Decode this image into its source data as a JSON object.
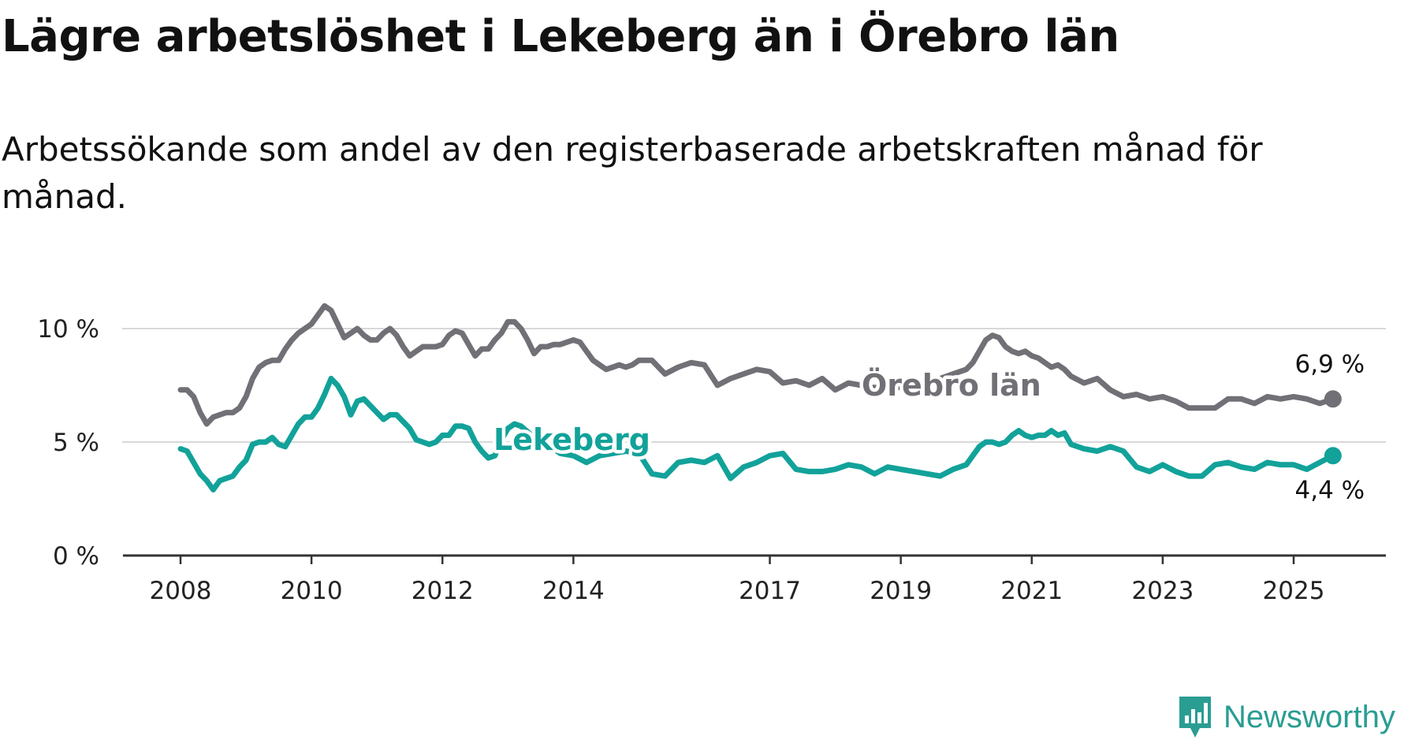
{
  "header": {
    "title": "Lägre arbetslöshet i Lekeberg än i Örebro län",
    "subtitle": "Arbetssökande som andel av den registerbaserade arbetskraften månad för månad."
  },
  "brand": {
    "name": "Newsworthy",
    "icon": "bar-chart-icon",
    "color": "#2a9d93"
  },
  "chart_data": {
    "type": "line",
    "title": "Lägre arbetslöshet i Lekeberg än i Örebro län",
    "subtitle": "Arbetssökande som andel av den registerbaserade arbetskraften månad för månad.",
    "xlim": [
      2008.0,
      2026.2
    ],
    "ylim": [
      0,
      11
    ],
    "x_ticks": [
      2008,
      2010,
      2012,
      2014,
      2017,
      2019,
      2021,
      2023,
      2025
    ],
    "x_tick_labels": [
      "2008",
      "2010",
      "2012",
      "2014",
      "2017",
      "2019",
      "2021",
      "2023",
      "2025"
    ],
    "y_ticks": [
      0,
      5,
      10
    ],
    "y_tick_labels": [
      "0 %",
      "5 %",
      "10 %"
    ],
    "grid": "horizontal",
    "legend": "inline labels",
    "series": [
      {
        "name": "Örebro län",
        "color": "#707076",
        "end_label": "6,9 %",
        "x": [
          2008.0,
          2008.1,
          2008.2,
          2008.3,
          2008.4,
          2008.5,
          2008.6,
          2008.7,
          2008.8,
          2008.9,
          2009.0,
          2009.1,
          2009.2,
          2009.3,
          2009.4,
          2009.5,
          2009.6,
          2009.7,
          2009.8,
          2009.9,
          2010.0,
          2010.1,
          2010.2,
          2010.3,
          2010.4,
          2010.5,
          2010.6,
          2010.7,
          2010.8,
          2010.9,
          2011.0,
          2011.1,
          2011.2,
          2011.3,
          2011.4,
          2011.5,
          2011.6,
          2011.7,
          2011.8,
          2011.9,
          2012.0,
          2012.1,
          2012.2,
          2012.3,
          2012.4,
          2012.5,
          2012.6,
          2012.7,
          2012.8,
          2012.9,
          2013.0,
          2013.1,
          2013.2,
          2013.3,
          2013.4,
          2013.5,
          2013.6,
          2013.7,
          2013.8,
          2013.9,
          2014.0,
          2014.1,
          2014.2,
          2014.3,
          2014.4,
          2014.5,
          2014.6,
          2014.7,
          2014.8,
          2014.9,
          2015.0,
          2015.2,
          2015.4,
          2015.6,
          2015.8,
          2016.0,
          2016.2,
          2016.4,
          2016.6,
          2016.8,
          2017.0,
          2017.2,
          2017.4,
          2017.6,
          2017.8,
          2018.0,
          2018.2,
          2018.4,
          2018.6,
          2018.8,
          2019.0,
          2019.2,
          2019.4,
          2019.6,
          2019.8,
          2020.0,
          2020.1,
          2020.2,
          2020.3,
          2020.4,
          2020.5,
          2020.6,
          2020.7,
          2020.8,
          2020.9,
          2021.0,
          2021.1,
          2021.2,
          2021.3,
          2021.4,
          2021.5,
          2021.6,
          2021.8,
          2022.0,
          2022.2,
          2022.4,
          2022.6,
          2022.8,
          2023.0,
          2023.2,
          2023.4,
          2023.6,
          2023.8,
          2024.0,
          2024.2,
          2024.4,
          2024.6,
          2024.8,
          2025.0,
          2025.2,
          2025.4,
          2025.6
        ],
        "values": [
          7.3,
          7.3,
          7.0,
          6.3,
          5.8,
          6.1,
          6.2,
          6.3,
          6.3,
          6.5,
          7.0,
          7.8,
          8.3,
          8.5,
          8.6,
          8.6,
          9.1,
          9.5,
          9.8,
          10.0,
          10.2,
          10.6,
          11.0,
          10.8,
          10.2,
          9.6,
          9.8,
          10.0,
          9.7,
          9.5,
          9.5,
          9.8,
          10.0,
          9.7,
          9.2,
          8.8,
          9.0,
          9.2,
          9.2,
          9.2,
          9.3,
          9.7,
          9.9,
          9.8,
          9.3,
          8.8,
          9.1,
          9.1,
          9.5,
          9.8,
          10.3,
          10.3,
          10.0,
          9.5,
          8.9,
          9.2,
          9.2,
          9.3,
          9.3,
          9.4,
          9.5,
          9.4,
          9.0,
          8.6,
          8.4,
          8.2,
          8.3,
          8.4,
          8.3,
          8.4,
          8.6,
          8.6,
          8.0,
          8.3,
          8.5,
          8.4,
          7.5,
          7.8,
          8.0,
          8.2,
          8.1,
          7.6,
          7.7,
          7.5,
          7.8,
          7.3,
          7.6,
          7.5,
          7.4,
          7.5,
          7.4,
          7.2,
          7.6,
          7.8,
          8.0,
          8.2,
          8.5,
          9.0,
          9.5,
          9.7,
          9.6,
          9.2,
          9.0,
          8.9,
          9.0,
          8.8,
          8.7,
          8.5,
          8.3,
          8.4,
          8.2,
          7.9,
          7.6,
          7.8,
          7.3,
          7.0,
          7.1,
          6.9,
          7.0,
          6.8,
          6.5,
          6.5,
          6.5,
          6.9,
          6.9,
          6.7,
          7.0,
          6.9,
          7.0,
          6.9,
          6.7,
          6.9
        ]
      },
      {
        "name": "Lekeberg",
        "color": "#12a29a",
        "end_label": "4,4 %",
        "x": [
          2008.0,
          2008.1,
          2008.2,
          2008.3,
          2008.4,
          2008.5,
          2008.6,
          2008.7,
          2008.8,
          2008.9,
          2009.0,
          2009.1,
          2009.2,
          2009.3,
          2009.4,
          2009.5,
          2009.6,
          2009.7,
          2009.8,
          2009.9,
          2010.0,
          2010.1,
          2010.2,
          2010.3,
          2010.4,
          2010.5,
          2010.6,
          2010.7,
          2010.8,
          2010.9,
          2011.0,
          2011.1,
          2011.2,
          2011.3,
          2011.4,
          2011.5,
          2011.6,
          2011.7,
          2011.8,
          2011.9,
          2012.0,
          2012.1,
          2012.2,
          2012.3,
          2012.4,
          2012.5,
          2012.6,
          2012.7,
          2012.8,
          2012.9,
          2013.0,
          2013.1,
          2013.2,
          2013.4,
          2013.6,
          2013.8,
          2014.0,
          2014.2,
          2014.4,
          2014.6,
          2014.8,
          2015.0,
          2015.2,
          2015.4,
          2015.6,
          2015.8,
          2016.0,
          2016.2,
          2016.4,
          2016.6,
          2016.8,
          2017.0,
          2017.2,
          2017.4,
          2017.6,
          2017.8,
          2018.0,
          2018.2,
          2018.4,
          2018.6,
          2018.8,
          2019.0,
          2019.2,
          2019.4,
          2019.6,
          2019.8,
          2020.0,
          2020.1,
          2020.2,
          2020.3,
          2020.4,
          2020.5,
          2020.6,
          2020.7,
          2020.8,
          2020.9,
          2021.0,
          2021.1,
          2021.2,
          2021.3,
          2021.4,
          2021.5,
          2021.6,
          2021.8,
          2022.0,
          2022.2,
          2022.4,
          2022.6,
          2022.8,
          2023.0,
          2023.2,
          2023.4,
          2023.6,
          2023.8,
          2024.0,
          2024.2,
          2024.4,
          2024.6,
          2024.8,
          2025.0,
          2025.2,
          2025.4,
          2025.6
        ],
        "values": [
          4.7,
          4.6,
          4.1,
          3.6,
          3.3,
          2.9,
          3.3,
          3.4,
          3.5,
          3.9,
          4.2,
          4.9,
          5.0,
          5.0,
          5.2,
          4.9,
          4.8,
          5.3,
          5.8,
          6.1,
          6.1,
          6.5,
          7.1,
          7.8,
          7.5,
          7.0,
          6.2,
          6.8,
          6.9,
          6.6,
          6.3,
          6.0,
          6.2,
          6.2,
          5.9,
          5.6,
          5.1,
          5.0,
          4.9,
          5.0,
          5.3,
          5.3,
          5.7,
          5.7,
          5.6,
          5.0,
          4.6,
          4.3,
          4.4,
          5.1,
          5.6,
          5.8,
          5.7,
          5.2,
          4.9,
          4.5,
          4.4,
          4.1,
          4.4,
          4.5,
          4.6,
          4.5,
          3.6,
          3.5,
          4.1,
          4.2,
          4.1,
          4.4,
          3.4,
          3.9,
          4.1,
          4.4,
          4.5,
          3.8,
          3.7,
          3.7,
          3.8,
          4.0,
          3.9,
          3.6,
          3.9,
          3.8,
          3.7,
          3.6,
          3.5,
          3.8,
          4.0,
          4.4,
          4.8,
          5.0,
          5.0,
          4.9,
          5.0,
          5.3,
          5.5,
          5.3,
          5.2,
          5.3,
          5.3,
          5.5,
          5.3,
          5.4,
          4.9,
          4.7,
          4.6,
          4.8,
          4.6,
          3.9,
          3.7,
          4.0,
          3.7,
          3.5,
          3.5,
          4.0,
          4.1,
          3.9,
          3.8,
          4.1,
          4.0,
          4.0,
          3.8,
          4.1,
          4.4
        ]
      }
    ]
  }
}
